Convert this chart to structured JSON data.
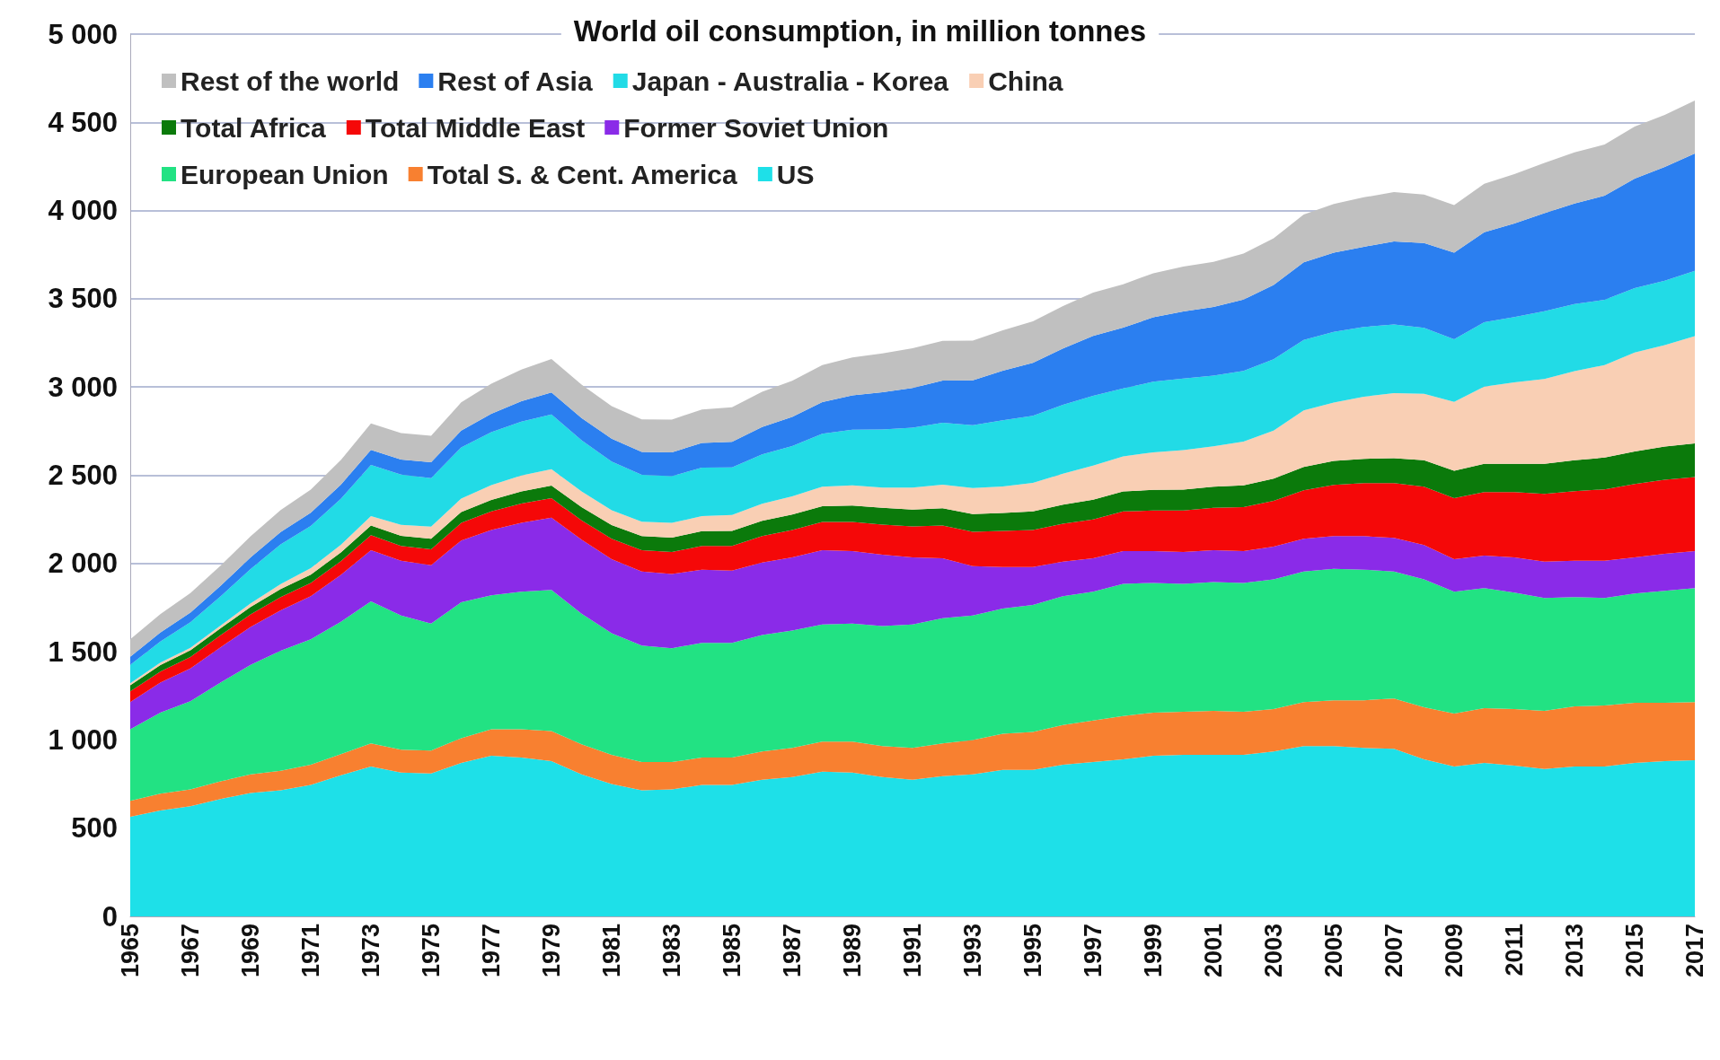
{
  "chart_data": {
    "type": "area",
    "title": "World oil consumption, in million tonnes",
    "stacked": true,
    "grid": "y",
    "legend": "top left",
    "categories": [
      "1965",
      null,
      "1967",
      null,
      "1969",
      null,
      "1971",
      null,
      "1973",
      null,
      "1975",
      null,
      "1977",
      null,
      "1979",
      null,
      "1981",
      null,
      "1983",
      null,
      "1985",
      null,
      "1987",
      null,
      "1989",
      null,
      "1991",
      null,
      "1993",
      null,
      "1995",
      null,
      "1997",
      null,
      "1999",
      null,
      "2001",
      null,
      "2003",
      null,
      "2005",
      null,
      "2007",
      null,
      "2009",
      null,
      "2011",
      null,
      "2013",
      null,
      "2015",
      null,
      "2017"
    ],
    "ylim": [
      0,
      5000
    ],
    "yticks": [
      0,
      500,
      {
        "value": 1000,
        "label": "1 000"
      },
      {
        "value": 1500,
        "label": "1 500"
      },
      {
        "value": 2000,
        "label": "2 000"
      },
      {
        "value": 2500,
        "label": "2 500"
      },
      {
        "value": 3000,
        "label": "3 000"
      },
      {
        "value": 3500,
        "label": "3 500"
      },
      {
        "value": 4000,
        "label": "4 000"
      },
      {
        "value": 4500,
        "label": "4 500"
      },
      {
        "value": 5000,
        "label": "5 000"
      }
    ],
    "series": [
      {
        "name": "US",
        "color": "#1ee0e8",
        "values": [
          565,
          600,
          625,
          665,
          700,
          715,
          745,
          800,
          850,
          815,
          810,
          870,
          910,
          900,
          880,
          805,
          750,
          715,
          720,
          745,
          745,
          775,
          790,
          820,
          815,
          790,
          775,
          795,
          805,
          830,
          830,
          860,
          875,
          890,
          910,
          915,
          915,
          915,
          935,
          965,
          965,
          955,
          950,
          890,
          850,
          870,
          855,
          835,
          850,
          850,
          870,
          880,
          885
        ]
      },
      {
        "name": "Total S. & Cent. America",
        "color": "#f88030",
        "values": [
          90,
          95,
          95,
          100,
          105,
          110,
          115,
          120,
          130,
          130,
          130,
          140,
          150,
          160,
          170,
          170,
          165,
          160,
          155,
          155,
          155,
          160,
          165,
          170,
          175,
          175,
          180,
          185,
          195,
          205,
          215,
          225,
          235,
          245,
          245,
          245,
          250,
          245,
          240,
          250,
          260,
          270,
          285,
          295,
          300,
          310,
          320,
          330,
          340,
          345,
          340,
          330,
          330
        ]
      },
      {
        "name": "European Union",
        "color": "#22e283",
        "values": [
          405,
          460,
          500,
          560,
          620,
          680,
          710,
          750,
          805,
          760,
          720,
          770,
          760,
          780,
          800,
          740,
          690,
          660,
          645,
          650,
          650,
          660,
          665,
          665,
          670,
          680,
          700,
          710,
          705,
          710,
          720,
          730,
          730,
          750,
          735,
          725,
          730,
          730,
          735,
          740,
          745,
          740,
          720,
          725,
          690,
          680,
          660,
          640,
          620,
          610,
          620,
          635,
          645
        ]
      },
      {
        "name": "Former Soviet Union",
        "color": "#8a2be8",
        "values": [
          155,
          170,
          185,
          200,
          215,
          230,
          245,
          265,
          290,
          310,
          330,
          350,
          370,
          390,
          410,
          420,
          420,
          420,
          420,
          415,
          410,
          410,
          415,
          420,
          410,
          405,
          380,
          340,
          280,
          235,
          215,
          195,
          190,
          185,
          180,
          180,
          180,
          180,
          185,
          185,
          185,
          190,
          190,
          195,
          185,
          185,
          200,
          205,
          205,
          210,
          205,
          210,
          210
        ]
      },
      {
        "name": "Total Middle East",
        "color": "#f50808",
        "values": [
          60,
          62,
          65,
          68,
          72,
          75,
          75,
          78,
          85,
          85,
          90,
          100,
          105,
          110,
          110,
          110,
          115,
          120,
          125,
          135,
          140,
          150,
          155,
          160,
          165,
          170,
          175,
          185,
          195,
          205,
          210,
          215,
          220,
          225,
          230,
          235,
          240,
          250,
          260,
          275,
          290,
          300,
          310,
          330,
          345,
          360,
          370,
          385,
          395,
          405,
          415,
          420,
          420
        ]
      },
      {
        "name": "Total Africa",
        "color": "#0b7a0b",
        "values": [
          35,
          37,
          38,
          40,
          42,
          45,
          47,
          50,
          55,
          57,
          60,
          62,
          65,
          68,
          72,
          75,
          78,
          80,
          82,
          83,
          85,
          87,
          88,
          90,
          93,
          95,
          96,
          98,
          100,
          102,
          105,
          108,
          111,
          114,
          117,
          118,
          120,
          123,
          126,
          132,
          137,
          138,
          142,
          150,
          155,
          160,
          160,
          170,
          175,
          180,
          185,
          188,
          190
        ]
      },
      {
        "name": "China",
        "color": "#f9cfb4",
        "values": [
          11,
          14,
          14,
          15,
          20,
          28,
          36,
          43,
          54,
          62,
          69,
          76,
          84,
          91,
          92,
          89,
          84,
          82,
          83,
          85,
          90,
          96,
          102,
          110,
          115,
          115,
          124,
          134,
          148,
          150,
          162,
          176,
          194,
          198,
          213,
          225,
          229,
          248,
          272,
          320,
          330,
          352,
          368,
          376,
          391,
          437,
          462,
          480,
          505,
          524,
          561,
          574,
          608
        ]
      },
      {
        "name": "Japan - Australia - Korea",
        "color": "#22dbe6",
        "values": [
          105,
          120,
          145,
          165,
          195,
          225,
          240,
          260,
          290,
          285,
          275,
          290,
          300,
          305,
          310,
          290,
          275,
          265,
          265,
          275,
          270,
          280,
          285,
          300,
          315,
          330,
          340,
          350,
          355,
          375,
          380,
          390,
          395,
          385,
          400,
          405,
          400,
          400,
          405,
          400,
          400,
          395,
          390,
          375,
          355,
          365,
          370,
          385,
          380,
          370,
          365,
          365,
          370
        ]
      },
      {
        "name": "Rest of Asia",
        "color": "#2b7ff0",
        "values": [
          45,
          50,
          55,
          60,
          65,
          70,
          75,
          80,
          85,
          85,
          90,
          95,
          105,
          115,
          125,
          125,
          130,
          130,
          135,
          140,
          145,
          155,
          165,
          180,
          195,
          210,
          225,
          240,
          255,
          280,
          300,
          320,
          340,
          345,
          365,
          380,
          390,
          405,
          420,
          440,
          450,
          455,
          470,
          480,
          490,
          510,
          530,
          555,
          570,
          590,
          620,
          645,
          665
        ]
      },
      {
        "name": "Rest of the world",
        "color": "#c0c0c0",
        "values": [
          100,
          105,
          110,
          115,
          120,
          125,
          130,
          140,
          150,
          150,
          150,
          160,
          170,
          180,
          190,
          190,
          185,
          185,
          185,
          190,
          195,
          200,
          205,
          210,
          215,
          220,
          225,
          225,
          225,
          230,
          235,
          240,
          245,
          245,
          250,
          255,
          255,
          260,
          265,
          270,
          275,
          280,
          280,
          275,
          270,
          275,
          280,
          285,
          290,
          290,
          295,
          295,
          300
        ]
      }
    ]
  }
}
